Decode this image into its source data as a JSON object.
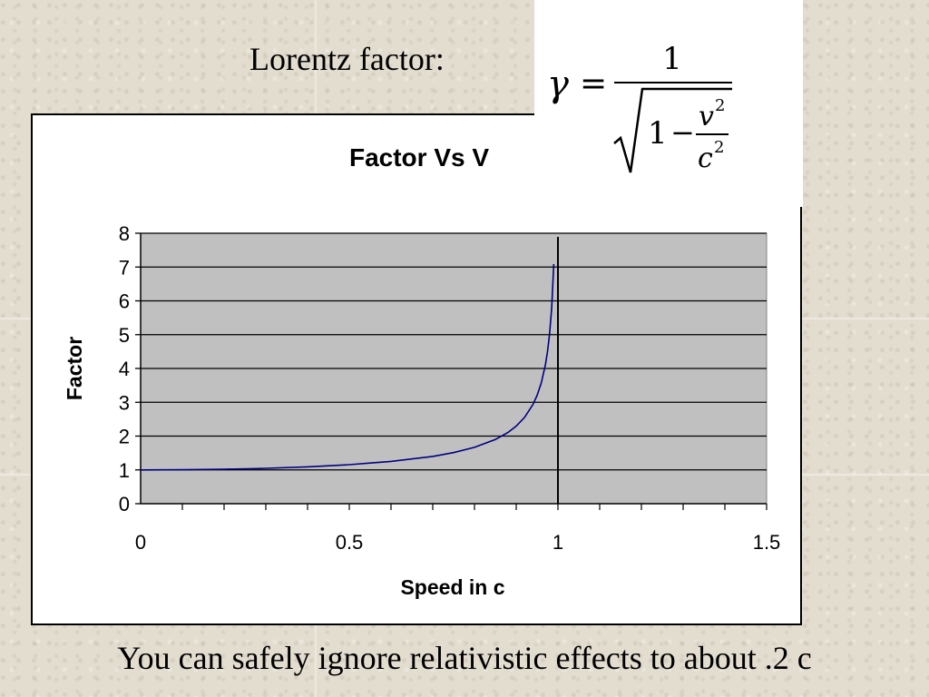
{
  "slide": {
    "heading": "Lorentz factor:",
    "footer": "You can safely ignore relativistic effects to about .2 c"
  },
  "formula": {
    "symbol": "γ",
    "equals": "=",
    "numerator": "1",
    "denominator_one": "1",
    "minus": "−",
    "v": "v",
    "c": "c",
    "exponent": "2"
  },
  "chart_data": {
    "type": "line",
    "title": "Factor Vs V",
    "xlabel": "Speed in c",
    "ylabel": "Factor",
    "xlim": [
      0,
      1.5
    ],
    "ylim": [
      0,
      8
    ],
    "xticks": [
      "0",
      "0.5",
      "1",
      "1.5"
    ],
    "yticks": [
      "0",
      "1",
      "2",
      "3",
      "4",
      "5",
      "6",
      "7",
      "8"
    ],
    "grid": "horizontal",
    "plot_background": "#c0c0c0",
    "line_color": "#000080",
    "vertical_line_at": 1,
    "series": [
      {
        "x": [
          0,
          0.1,
          0.2,
          0.28,
          0.3,
          0.4,
          0.5,
          0.6,
          0.7,
          0.75,
          0.8,
          0.85,
          0.88,
          0.9,
          0.92,
          0.94,
          0.95,
          0.96,
          0.97,
          0.975,
          0.98,
          0.985,
          0.99
        ],
        "y": [
          1.0,
          1.005,
          1.02,
          1.04,
          1.048,
          1.091,
          1.155,
          1.25,
          1.4,
          1.512,
          1.667,
          1.898,
          2.105,
          2.294,
          2.552,
          2.931,
          3.203,
          3.571,
          4.113,
          4.5,
          5.025,
          5.786,
          7.089
        ]
      }
    ]
  }
}
